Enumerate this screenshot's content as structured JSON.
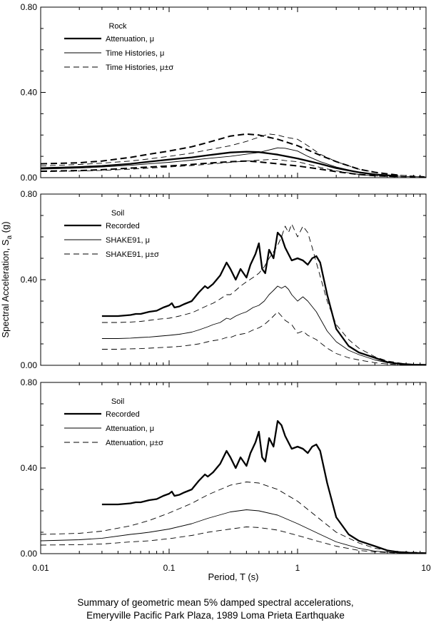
{
  "caption": {
    "line1": "Summary of geometric mean 5% damped spectral accelerations,",
    "line2": "Emeryville Pacific Park Plaza, 1989 Loma Prieta Earthquake"
  },
  "x_axis_title": "Period, T (s)",
  "y_axis_title": "Spectral Acceleration, S",
  "y_axis_title_sub": "a",
  "y_axis_title_unit": " (g)",
  "chart_data": [
    {
      "type": "line",
      "panel": "top",
      "legend_title": "Rock",
      "xscale": "log",
      "xlim": [
        0.01,
        10
      ],
      "ylim": [
        0,
        0.8
      ],
      "yticks": [
        "0.00",
        "0.40",
        "0.80"
      ],
      "series": [
        {
          "name": "Attenuation, μ",
          "style": "thick-solid",
          "x": [
            0.01,
            0.02,
            0.03,
            0.05,
            0.07,
            0.1,
            0.15,
            0.2,
            0.3,
            0.4,
            0.5,
            0.7,
            1,
            1.5,
            2,
            3,
            4,
            6
          ],
          "y": [
            0.045,
            0.05,
            0.055,
            0.065,
            0.075,
            0.085,
            0.095,
            0.105,
            0.118,
            0.122,
            0.12,
            0.108,
            0.09,
            0.065,
            0.045,
            0.025,
            0.015,
            0.008
          ]
        },
        {
          "name": "Attenuation, μ±σ (upper)",
          "style": "thick-dashed",
          "x": [
            0.01,
            0.02,
            0.03,
            0.05,
            0.07,
            0.1,
            0.15,
            0.2,
            0.3,
            0.4,
            0.5,
            0.7,
            1,
            1.5,
            2,
            3,
            4,
            6
          ],
          "y": [
            0.065,
            0.07,
            0.078,
            0.095,
            0.11,
            0.125,
            0.145,
            0.165,
            0.195,
            0.205,
            0.2,
            0.18,
            0.15,
            0.105,
            0.075,
            0.04,
            0.025,
            0.012
          ]
        },
        {
          "name": "Attenuation, μ±σ (lower)",
          "style": "thick-dashed",
          "x": [
            0.01,
            0.02,
            0.03,
            0.05,
            0.07,
            0.1,
            0.15,
            0.2,
            0.3,
            0.4,
            0.5,
            0.7,
            1,
            1.5,
            2,
            3,
            4,
            6
          ],
          "y": [
            0.03,
            0.033,
            0.037,
            0.045,
            0.05,
            0.055,
            0.062,
            0.068,
            0.075,
            0.078,
            0.074,
            0.065,
            0.055,
            0.04,
            0.028,
            0.015,
            0.009,
            0.005
          ]
        },
        {
          "name": "Time Histories, μ",
          "style": "thin-solid",
          "x": [
            0.01,
            0.02,
            0.03,
            0.05,
            0.07,
            0.1,
            0.15,
            0.2,
            0.3,
            0.4,
            0.5,
            0.6,
            0.7,
            0.8,
            1,
            1.2,
            1.5,
            2,
            3,
            4,
            6,
            10
          ],
          "y": [
            0.04,
            0.045,
            0.05,
            0.058,
            0.065,
            0.072,
            0.082,
            0.09,
            0.1,
            0.11,
            0.118,
            0.13,
            0.14,
            0.138,
            0.125,
            0.1,
            0.075,
            0.05,
            0.025,
            0.015,
            0.007,
            0.003
          ]
        },
        {
          "name": "Time Histories, μ±σ (upper)",
          "style": "thin-dashed",
          "x": [
            0.01,
            0.02,
            0.03,
            0.05,
            0.07,
            0.1,
            0.15,
            0.2,
            0.3,
            0.4,
            0.5,
            0.6,
            0.7,
            0.8,
            1,
            1.2,
            1.5,
            2,
            3,
            4,
            6,
            10
          ],
          "y": [
            0.055,
            0.062,
            0.068,
            0.078,
            0.088,
            0.1,
            0.115,
            0.13,
            0.15,
            0.17,
            0.19,
            0.205,
            0.2,
            0.19,
            0.18,
            0.15,
            0.11,
            0.075,
            0.04,
            0.025,
            0.012,
            0.005
          ]
        },
        {
          "name": "Time Histories, μ±σ (lower)",
          "style": "thin-dashed",
          "x": [
            0.01,
            0.02,
            0.03,
            0.05,
            0.07,
            0.1,
            0.15,
            0.2,
            0.3,
            0.4,
            0.5,
            0.6,
            0.7,
            0.8,
            1,
            1.2,
            1.5,
            2,
            3,
            4,
            6,
            10
          ],
          "y": [
            0.028,
            0.031,
            0.034,
            0.04,
            0.045,
            0.05,
            0.057,
            0.063,
            0.072,
            0.078,
            0.082,
            0.085,
            0.085,
            0.08,
            0.075,
            0.063,
            0.048,
            0.032,
            0.015,
            0.008,
            0.004,
            0.002
          ]
        }
      ]
    },
    {
      "type": "line",
      "panel": "middle",
      "legend_title": "Soil",
      "xscale": "log",
      "xlim": [
        0.01,
        10
      ],
      "ylim": [
        0,
        0.8
      ],
      "yticks": [
        "0.00",
        "0.40",
        "0.80"
      ],
      "series": [
        {
          "name": "Recorded",
          "style": "thick-solid",
          "x": [
            0.03,
            0.04,
            0.05,
            0.055,
            0.06,
            0.07,
            0.08,
            0.09,
            0.1,
            0.105,
            0.11,
            0.12,
            0.13,
            0.15,
            0.17,
            0.19,
            0.2,
            0.22,
            0.25,
            0.28,
            0.3,
            0.33,
            0.36,
            0.4,
            0.43,
            0.47,
            0.5,
            0.53,
            0.56,
            0.6,
            0.65,
            0.7,
            0.75,
            0.8,
            0.9,
            1.0,
            1.1,
            1.2,
            1.3,
            1.4,
            1.5,
            1.7,
            2.0,
            2.5,
            3,
            4,
            5,
            6,
            8,
            10
          ],
          "y": [
            0.23,
            0.23,
            0.235,
            0.24,
            0.24,
            0.25,
            0.255,
            0.27,
            0.28,
            0.29,
            0.27,
            0.275,
            0.285,
            0.3,
            0.34,
            0.37,
            0.36,
            0.38,
            0.42,
            0.48,
            0.45,
            0.4,
            0.45,
            0.41,
            0.47,
            0.52,
            0.57,
            0.45,
            0.43,
            0.54,
            0.5,
            0.62,
            0.6,
            0.55,
            0.49,
            0.5,
            0.49,
            0.47,
            0.5,
            0.51,
            0.48,
            0.33,
            0.17,
            0.09,
            0.06,
            0.035,
            0.015,
            0.008,
            0.003,
            0.002
          ]
        },
        {
          "name": "SHAKE91, μ",
          "style": "thin-solid",
          "x": [
            0.03,
            0.04,
            0.05,
            0.06,
            0.07,
            0.08,
            0.1,
            0.12,
            0.15,
            0.17,
            0.2,
            0.22,
            0.25,
            0.28,
            0.3,
            0.33,
            0.36,
            0.4,
            0.45,
            0.5,
            0.55,
            0.6,
            0.65,
            0.7,
            0.75,
            0.8,
            0.85,
            0.9,
            1.0,
            1.1,
            1.2,
            1.4,
            1.7,
            2.0,
            2.5,
            3,
            4,
            5,
            7,
            10
          ],
          "y": [
            0.125,
            0.125,
            0.127,
            0.13,
            0.132,
            0.135,
            0.14,
            0.145,
            0.155,
            0.165,
            0.18,
            0.19,
            0.2,
            0.22,
            0.215,
            0.23,
            0.24,
            0.25,
            0.27,
            0.28,
            0.3,
            0.33,
            0.35,
            0.37,
            0.36,
            0.37,
            0.355,
            0.33,
            0.3,
            0.32,
            0.3,
            0.25,
            0.16,
            0.11,
            0.07,
            0.05,
            0.025,
            0.012,
            0.004,
            0.001
          ]
        },
        {
          "name": "SHAKE91, μ±σ (upper)",
          "style": "thin-dashed",
          "x": [
            0.03,
            0.04,
            0.05,
            0.06,
            0.07,
            0.08,
            0.1,
            0.12,
            0.15,
            0.17,
            0.2,
            0.22,
            0.25,
            0.28,
            0.3,
            0.33,
            0.36,
            0.4,
            0.45,
            0.5,
            0.55,
            0.6,
            0.65,
            0.7,
            0.75,
            0.8,
            0.85,
            0.9,
            1.0,
            1.1,
            1.2,
            1.3,
            1.4,
            1.7,
            2.0,
            2.5,
            3,
            4,
            5,
            7,
            10
          ],
          "y": [
            0.2,
            0.2,
            0.202,
            0.205,
            0.21,
            0.215,
            0.22,
            0.23,
            0.245,
            0.26,
            0.28,
            0.29,
            0.31,
            0.33,
            0.33,
            0.35,
            0.37,
            0.39,
            0.41,
            0.43,
            0.46,
            0.5,
            0.53,
            0.56,
            0.6,
            0.65,
            0.62,
            0.66,
            0.6,
            0.65,
            0.62,
            0.55,
            0.48,
            0.3,
            0.19,
            0.12,
            0.08,
            0.04,
            0.02,
            0.006,
            0.002
          ]
        },
        {
          "name": "SHAKE91, μ±σ (lower)",
          "style": "thin-dashed",
          "x": [
            0.03,
            0.04,
            0.05,
            0.06,
            0.07,
            0.08,
            0.1,
            0.12,
            0.15,
            0.17,
            0.2,
            0.22,
            0.25,
            0.28,
            0.3,
            0.33,
            0.36,
            0.4,
            0.45,
            0.5,
            0.55,
            0.6,
            0.65,
            0.7,
            0.75,
            0.8,
            0.9,
            1.0,
            1.1,
            1.2,
            1.4,
            1.7,
            2.0,
            2.5,
            3,
            4,
            5,
            7,
            10
          ],
          "y": [
            0.075,
            0.075,
            0.077,
            0.078,
            0.08,
            0.082,
            0.085,
            0.088,
            0.095,
            0.1,
            0.11,
            0.115,
            0.12,
            0.13,
            0.13,
            0.14,
            0.145,
            0.15,
            0.165,
            0.175,
            0.19,
            0.21,
            0.23,
            0.25,
            0.23,
            0.21,
            0.19,
            0.15,
            0.16,
            0.14,
            0.12,
            0.08,
            0.055,
            0.035,
            0.025,
            0.012,
            0.006,
            0.002,
            0.001
          ]
        }
      ]
    },
    {
      "type": "line",
      "panel": "bottom",
      "legend_title": "Soil",
      "xscale": "log",
      "xlim": [
        0.01,
        10
      ],
      "ylim": [
        0,
        0.8
      ],
      "yticks": [
        "0.00",
        "0.40",
        "0.80"
      ],
      "xticks": [
        "0.01",
        "0.1",
        "1",
        "10"
      ],
      "series": [
        {
          "name": "Recorded",
          "style": "thick-solid",
          "x": [
            0.03,
            0.04,
            0.05,
            0.055,
            0.06,
            0.07,
            0.08,
            0.09,
            0.1,
            0.105,
            0.11,
            0.12,
            0.13,
            0.15,
            0.17,
            0.19,
            0.2,
            0.22,
            0.25,
            0.28,
            0.3,
            0.33,
            0.36,
            0.4,
            0.43,
            0.47,
            0.5,
            0.53,
            0.56,
            0.6,
            0.65,
            0.7,
            0.75,
            0.8,
            0.9,
            1.0,
            1.1,
            1.2,
            1.3,
            1.4,
            1.5,
            1.7,
            2.0,
            2.5,
            3,
            4,
            5,
            6,
            8,
            10
          ],
          "y": [
            0.23,
            0.23,
            0.235,
            0.24,
            0.24,
            0.25,
            0.255,
            0.27,
            0.28,
            0.29,
            0.27,
            0.275,
            0.285,
            0.3,
            0.34,
            0.37,
            0.36,
            0.38,
            0.42,
            0.48,
            0.45,
            0.4,
            0.45,
            0.41,
            0.47,
            0.52,
            0.57,
            0.45,
            0.43,
            0.54,
            0.5,
            0.62,
            0.6,
            0.55,
            0.49,
            0.5,
            0.49,
            0.47,
            0.5,
            0.51,
            0.48,
            0.33,
            0.17,
            0.09,
            0.06,
            0.035,
            0.015,
            0.008,
            0.003,
            0.002
          ]
        },
        {
          "name": "Attenuation, μ",
          "style": "thin-solid",
          "x": [
            0.01,
            0.02,
            0.03,
            0.05,
            0.06,
            0.07,
            0.1,
            0.15,
            0.2,
            0.3,
            0.4,
            0.5,
            0.7,
            1,
            1.5,
            2,
            3,
            4,
            6,
            10
          ],
          "y": [
            0.06,
            0.065,
            0.072,
            0.09,
            0.095,
            0.1,
            0.115,
            0.14,
            0.165,
            0.195,
            0.205,
            0.2,
            0.18,
            0.14,
            0.09,
            0.055,
            0.025,
            0.012,
            0.004,
            0.001
          ]
        },
        {
          "name": "Attenuation, μ±σ (upper)",
          "style": "thin-dashed",
          "x": [
            0.01,
            0.02,
            0.03,
            0.05,
            0.07,
            0.1,
            0.15,
            0.2,
            0.3,
            0.4,
            0.5,
            0.7,
            1,
            1.5,
            2,
            3,
            4,
            6,
            10
          ],
          "y": [
            0.09,
            0.095,
            0.105,
            0.13,
            0.155,
            0.19,
            0.235,
            0.275,
            0.32,
            0.335,
            0.33,
            0.3,
            0.245,
            0.16,
            0.1,
            0.05,
            0.025,
            0.01,
            0.004
          ]
        },
        {
          "name": "Attenuation, μ±σ (lower)",
          "style": "thin-dashed",
          "x": [
            0.01,
            0.02,
            0.03,
            0.05,
            0.07,
            0.1,
            0.15,
            0.2,
            0.3,
            0.4,
            0.5,
            0.7,
            1,
            1.5,
            2,
            3,
            4,
            6,
            10
          ],
          "y": [
            0.04,
            0.042,
            0.045,
            0.055,
            0.06,
            0.07,
            0.085,
            0.1,
            0.115,
            0.125,
            0.122,
            0.11,
            0.085,
            0.055,
            0.035,
            0.015,
            0.008,
            0.003,
            0.001
          ]
        }
      ]
    }
  ],
  "legends": [
    {
      "title": "Rock",
      "items": [
        {
          "label": "Attenuation, μ",
          "style": "thick-solid"
        },
        {
          "label": "Time Histories, μ",
          "style": "thin-solid"
        },
        {
          "label": "Time Histories, μ±σ",
          "style": "thin-dashed"
        }
      ]
    },
    {
      "title": "Soil",
      "items": [
        {
          "label": "Recorded",
          "style": "thick-solid"
        },
        {
          "label": "SHAKE91, μ",
          "style": "thin-solid"
        },
        {
          "label": "SHAKE91, μ±σ",
          "style": "thin-dashed"
        }
      ]
    },
    {
      "title": "Soil",
      "items": [
        {
          "label": "Recorded",
          "style": "thick-solid"
        },
        {
          "label": "Attenuation, μ",
          "style": "thin-solid"
        },
        {
          "label": "Attenuation, μ±σ",
          "style": "thin-dashed"
        }
      ]
    }
  ]
}
